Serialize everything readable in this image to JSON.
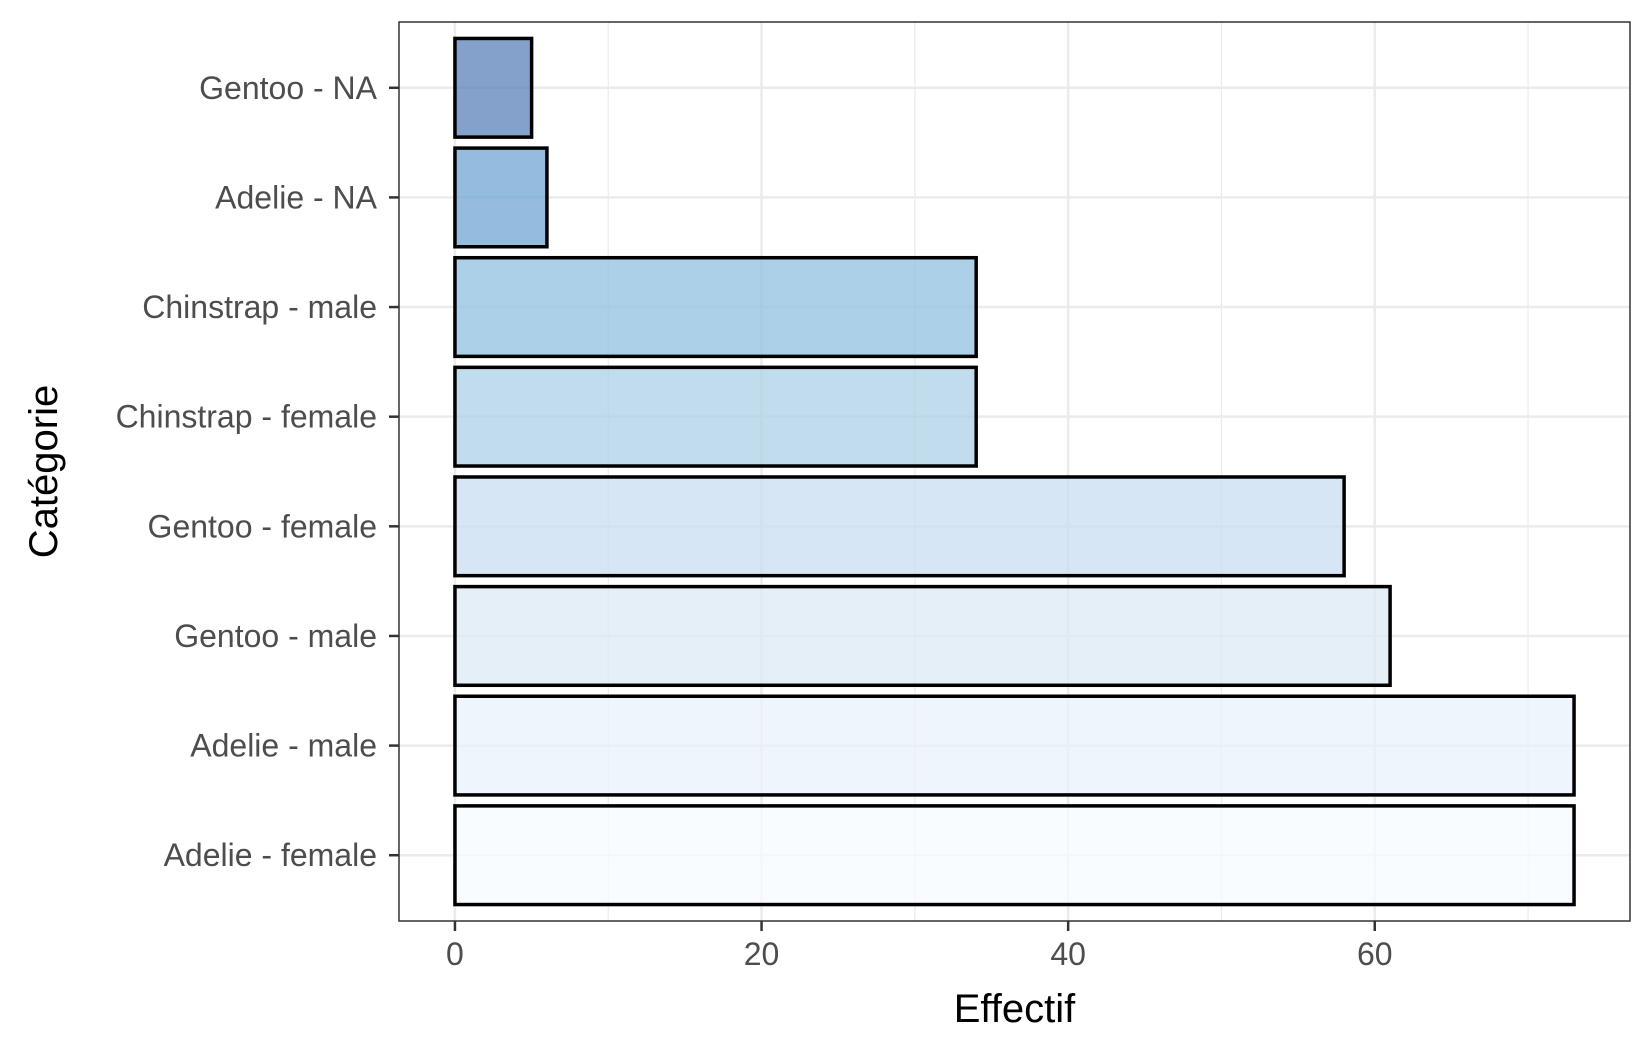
{
  "chart_data": {
    "type": "bar",
    "orientation": "horizontal",
    "title": "",
    "xlabel": "Effectif",
    "ylabel": "Catégorie",
    "categories": [
      "Adelie - female",
      "Adelie - male",
      "Gentoo - male",
      "Gentoo - female",
      "Chinstrap - female",
      "Chinstrap - male",
      "Adelie - NA",
      "Gentoo - NA"
    ],
    "values": [
      73,
      73,
      61,
      58,
      34,
      34,
      6,
      5
    ],
    "bar_colors": [
      "#f7fbff",
      "#eaf2fb",
      "#dbe9f6",
      "#c8ddf0",
      "#acd0e6",
      "#90c0df",
      "#6fa6d4",
      "#5a82b8"
    ],
    "bar_opacity": 0.75,
    "xlim": [
      -3.65,
      76.65
    ],
    "xticks": [
      0,
      20,
      40,
      60
    ],
    "xtick_labels": [
      "0",
      "20",
      "40",
      "60"
    ],
    "grid": true,
    "legend": "none"
  }
}
